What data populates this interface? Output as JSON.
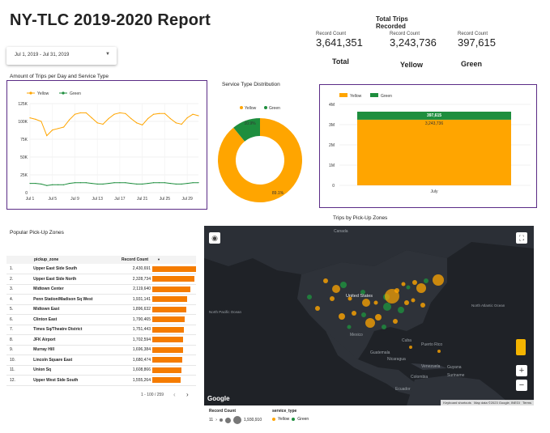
{
  "page": {
    "title": "NY-TLC 2019-2020 Report"
  },
  "date_range": {
    "value": "Jul 1, 2019 - Jul 31, 2019"
  },
  "kpis": {
    "title": "Total Trips\nRecorded",
    "items": [
      {
        "label": "Record Count",
        "value": "3,641,351",
        "foot": "Total"
      },
      {
        "label": "Record Count",
        "value": "3,243,736",
        "foot": "Yellow"
      },
      {
        "label": "Record Count",
        "value": "397,615",
        "foot": "Green"
      }
    ]
  },
  "colors": {
    "yellow": "#FFA500",
    "green": "#1E8E3E",
    "panel_border": "#5B2C86",
    "table_bar": "#F57C00",
    "map_bg": "#1F2227"
  },
  "line_chart": {
    "title": "Amount of Trips per Day and Service Type",
    "legend": [
      "Yellow",
      "Green"
    ],
    "chart_data": {
      "type": "line",
      "x": [
        "Jul 1",
        "Jul 2",
        "Jul 3",
        "Jul 4",
        "Jul 5",
        "Jul 6",
        "Jul 7",
        "Jul 8",
        "Jul 9",
        "Jul 10",
        "Jul 11",
        "Jul 12",
        "Jul 13",
        "Jul 14",
        "Jul 15",
        "Jul 16",
        "Jul 17",
        "Jul 18",
        "Jul 19",
        "Jul 20",
        "Jul 21",
        "Jul 22",
        "Jul 23",
        "Jul 24",
        "Jul 25",
        "Jul 26",
        "Jul 27",
        "Jul 28",
        "Jul 29",
        "Jul 30",
        "Jul 31"
      ],
      "x_ticks": [
        "Jul 1",
        "Jul 5",
        "Jul 9",
        "Jul 13",
        "Jul 17",
        "Jul 21",
        "Jul 25",
        "Jul 29"
      ],
      "y_ticks": [
        "0",
        "25K",
        "50K",
        "75K",
        "100K",
        "125K"
      ],
      "ylim": [
        0,
        125000
      ],
      "series": [
        {
          "name": "Yellow",
          "values": [
            105000,
            103000,
            100000,
            80000,
            88000,
            90000,
            92000,
            102000,
            110000,
            112000,
            112000,
            105000,
            98000,
            96000,
            104000,
            110000,
            112000,
            111000,
            104000,
            98000,
            95000,
            104000,
            110000,
            111000,
            111000,
            104000,
            98000,
            96000,
            105000,
            110000,
            108000
          ]
        },
        {
          "name": "Green",
          "values": [
            13000,
            13000,
            12000,
            10000,
            11000,
            11000,
            11000,
            13000,
            14000,
            14000,
            14000,
            13000,
            12000,
            12000,
            13000,
            14000,
            14000,
            14000,
            13000,
            12000,
            12000,
            13000,
            14000,
            14000,
            14000,
            13000,
            12000,
            12000,
            13000,
            14000,
            14000
          ]
        }
      ]
    }
  },
  "donut_chart": {
    "title": "Service Type Distribution",
    "legend": [
      "Yellow",
      "Green"
    ],
    "chart_data": {
      "type": "pie",
      "categories": [
        "Yellow",
        "Green"
      ],
      "values": [
        89.1,
        10.9
      ],
      "labels": [
        "89.1%",
        "10.9%"
      ]
    }
  },
  "bar_chart": {
    "legend": [
      "Yellow",
      "Green"
    ],
    "chart_data": {
      "type": "bar",
      "categories": [
        "July"
      ],
      "series": [
        {
          "name": "Yellow",
          "values": [
            3243736
          ]
        },
        {
          "name": "Green",
          "values": [
            397615
          ]
        }
      ],
      "data_labels": [
        "3,243,736",
        "397,615"
      ],
      "y_ticks": [
        "0",
        "1M",
        "2M",
        "3M",
        "4M"
      ],
      "ylim": [
        0,
        4000000
      ]
    }
  },
  "zones_table": {
    "title": "Popular Pick-Up Zones",
    "col_zone": "pickup_zone",
    "col_count": "Record Count",
    "sort_indicator": "▼",
    "max": 2430691,
    "rows": [
      {
        "n": "1.",
        "zone": "Upper East Side South",
        "count": "2,430,691",
        "v": 2430691
      },
      {
        "n": "2.",
        "zone": "Upper East Side North",
        "count": "2,328,734",
        "v": 2328734
      },
      {
        "n": "3.",
        "zone": "Midtown Center",
        "count": "2,119,640",
        "v": 2119640
      },
      {
        "n": "4.",
        "zone": "Penn Station/Madison Sq West",
        "count": "1,931,141",
        "v": 1931141
      },
      {
        "n": "5.",
        "zone": "Midtown East",
        "count": "1,896,632",
        "v": 1896632
      },
      {
        "n": "6.",
        "zone": "Clinton East",
        "count": "1,790,465",
        "v": 1790465
      },
      {
        "n": "7.",
        "zone": "Times Sq/Theatre District",
        "count": "1,751,443",
        "v": 1751443
      },
      {
        "n": "8.",
        "zone": "JFK Airport",
        "count": "1,702,594",
        "v": 1702594
      },
      {
        "n": "9.",
        "zone": "Murray Hill",
        "count": "1,696,384",
        "v": 1696384
      },
      {
        "n": "10.",
        "zone": "Lincoln Square East",
        "count": "1,680,474",
        "v": 1680474
      },
      {
        "n": "11.",
        "zone": "Union Sq",
        "count": "1,608,866",
        "v": 1608866
      },
      {
        "n": "12.",
        "zone": "Upper West Side South",
        "count": "1,555,264",
        "v": 1555264
      }
    ],
    "pagination": "1 - 100 / 259"
  },
  "map": {
    "title": "Trips by  Pick-Up Zones",
    "logo": "Google",
    "attribution": [
      "Keyboard shortcuts",
      "Map data ©2023 Google, INEGI",
      "Terms"
    ],
    "labels": [
      "Canada",
      "United States",
      "Mexico",
      "Cuba",
      "Puerto Rico",
      "Guatemala",
      "Nicaragua",
      "Venezuela",
      "Colombia",
      "Ecuador",
      "Guyana",
      "Suriname",
      "North Pacific Ocean",
      "North Atlantic Ocean"
    ],
    "legend": {
      "size_title": "Record Count",
      "size_min": "11",
      "size_max": "1,930,910",
      "type_title": "service_type",
      "types": [
        "Yellow",
        "Green"
      ]
    }
  }
}
